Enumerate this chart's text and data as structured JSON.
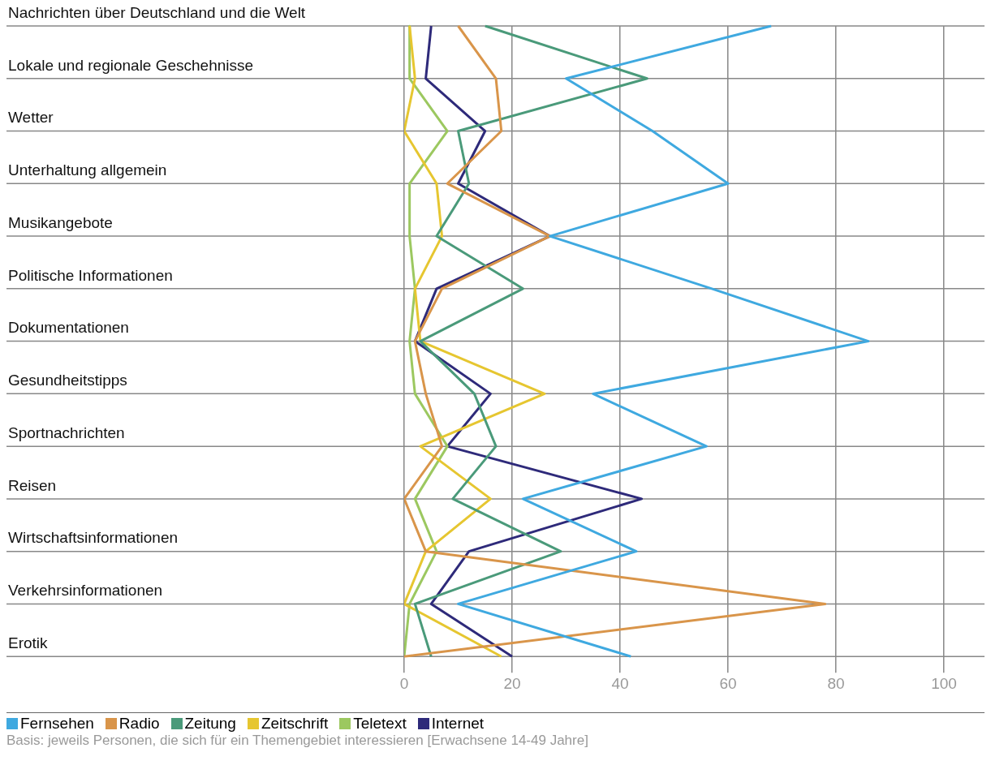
{
  "chart_data": {
    "type": "line",
    "orientation": "horizontal",
    "categories": [
      "Nachrichten über Deutschland und die Welt",
      "Lokale und regionale Geschehnisse",
      "Wetter",
      "Unterhaltung allgemein",
      "Musikangebote",
      "Politische Informationen",
      "Dokumentationen",
      "Gesundheitstipps",
      "Sportnachrichten",
      "Reisen",
      "Wirtschaftsinformationen",
      "Verkehrsinformationen",
      "Erotik"
    ],
    "series": [
      {
        "name": "Fernsehen",
        "color": "#3fa9e0",
        "values": [
          68,
          30,
          46,
          60,
          27,
          57,
          86,
          35,
          56,
          22,
          43,
          10,
          42
        ]
      },
      {
        "name": "Radio",
        "color": "#d9954a",
        "values": [
          10,
          17,
          18,
          8,
          27,
          7,
          2,
          4,
          7,
          0,
          4,
          78,
          0
        ]
      },
      {
        "name": "Zeitung",
        "color": "#4a9a7a",
        "values": [
          15,
          45,
          10,
          12,
          6,
          22,
          3,
          13,
          17,
          9,
          29,
          2,
          5
        ]
      },
      {
        "name": "Zeitschrift",
        "color": "#e6c630",
        "values": [
          1,
          2,
          0,
          6,
          7,
          2,
          3,
          26,
          3,
          16,
          4,
          0,
          18
        ]
      },
      {
        "name": "Teletext",
        "color": "#9cc860",
        "values": [
          1,
          1,
          8,
          1,
          1,
          2,
          1,
          2,
          8,
          2,
          6,
          1,
          0
        ]
      },
      {
        "name": "Internet",
        "color": "#2e2a7a",
        "values": [
          5,
          4,
          15,
          10,
          27,
          6,
          2,
          16,
          8,
          44,
          12,
          5,
          20
        ]
      }
    ],
    "xlim": [
      0,
      100
    ],
    "xticks": [
      0,
      20,
      40,
      60,
      80,
      100
    ],
    "grid": true,
    "legend": "bottom",
    "annotations": [
      "Basis: jeweils Personen, die sich für ein Themengebiet interessieren [Erwachsene 14-49 Jahre]"
    ]
  }
}
